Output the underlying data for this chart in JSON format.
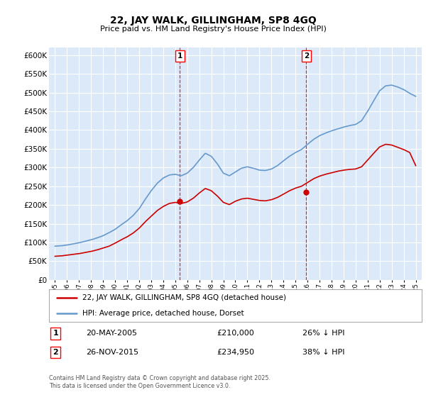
{
  "title": "22, JAY WALK, GILLINGHAM, SP8 4GQ",
  "subtitle": "Price paid vs. HM Land Registry's House Price Index (HPI)",
  "legend_line1": "22, JAY WALK, GILLINGHAM, SP8 4GQ (detached house)",
  "legend_line2": "HPI: Average price, detached house, Dorset",
  "annotation1": {
    "label": "1",
    "date_str": "20-MAY-2005",
    "price": 210000,
    "note": "26% ↓ HPI",
    "x_year": 2005.38
  },
  "annotation2": {
    "label": "2",
    "date_str": "26-NOV-2015",
    "price": 234950,
    "note": "38% ↓ HPI",
    "x_year": 2015.9
  },
  "footer_line1": "Contains HM Land Registry data © Crown copyright and database right 2025.",
  "footer_line2": "This data is licensed under the Open Government Licence v3.0.",
  "ylim": [
    0,
    620000
  ],
  "yticks": [
    0,
    50000,
    100000,
    150000,
    200000,
    250000,
    300000,
    350000,
    400000,
    450000,
    500000,
    550000,
    600000
  ],
  "xlim_start": 1994.5,
  "xlim_end": 2025.5,
  "outer_bg_color": "#ffffff",
  "plot_bg_color": "#dce9f8",
  "red_color": "#cc0000",
  "blue_color": "#6699cc",
  "sale1_x": 2005.38,
  "sale1_y": 210000,
  "sale2_x": 2015.9,
  "sale2_y": 234950,
  "hpi_years": [
    1995.0,
    1995.5,
    1996.0,
    1996.5,
    1997.0,
    1997.5,
    1998.0,
    1998.5,
    1999.0,
    1999.5,
    2000.0,
    2000.5,
    2001.0,
    2001.5,
    2002.0,
    2002.5,
    2003.0,
    2003.5,
    2004.0,
    2004.5,
    2005.0,
    2005.5,
    2006.0,
    2006.5,
    2007.0,
    2007.5,
    2008.0,
    2008.5,
    2009.0,
    2009.5,
    2010.0,
    2010.5,
    2011.0,
    2011.5,
    2012.0,
    2012.5,
    2013.0,
    2013.5,
    2014.0,
    2014.5,
    2015.0,
    2015.5,
    2016.0,
    2016.5,
    2017.0,
    2017.5,
    2018.0,
    2018.5,
    2019.0,
    2019.5,
    2020.0,
    2020.5,
    2021.0,
    2021.5,
    2022.0,
    2022.5,
    2023.0,
    2023.5,
    2024.0,
    2024.5,
    2025.0
  ],
  "hpi_values": [
    90000,
    91000,
    93000,
    96000,
    99000,
    103000,
    107000,
    112000,
    118000,
    126000,
    135000,
    147000,
    158000,
    172000,
    190000,
    215000,
    238000,
    258000,
    272000,
    280000,
    282000,
    278000,
    285000,
    300000,
    320000,
    338000,
    330000,
    310000,
    285000,
    278000,
    288000,
    298000,
    302000,
    298000,
    293000,
    292000,
    296000,
    305000,
    318000,
    330000,
    340000,
    348000,
    362000,
    375000,
    385000,
    392000,
    398000,
    403000,
    408000,
    412000,
    415000,
    425000,
    450000,
    478000,
    505000,
    518000,
    520000,
    515000,
    508000,
    498000,
    490000
  ],
  "red_years": [
    1995.0,
    1995.5,
    1996.0,
    1996.5,
    1997.0,
    1997.5,
    1998.0,
    1998.5,
    1999.0,
    1999.5,
    2000.0,
    2000.5,
    2001.0,
    2001.5,
    2002.0,
    2002.5,
    2003.0,
    2003.5,
    2004.0,
    2004.5,
    2005.0,
    2005.5,
    2006.0,
    2006.5,
    2007.0,
    2007.5,
    2008.0,
    2008.5,
    2009.0,
    2009.5,
    2010.0,
    2010.5,
    2011.0,
    2011.5,
    2012.0,
    2012.5,
    2013.0,
    2013.5,
    2014.0,
    2014.5,
    2015.0,
    2015.5,
    2016.0,
    2016.5,
    2017.0,
    2017.5,
    2018.0,
    2018.5,
    2019.0,
    2019.5,
    2020.0,
    2020.5,
    2021.0,
    2021.5,
    2022.0,
    2022.5,
    2023.0,
    2023.5,
    2024.0,
    2024.5,
    2025.0
  ],
  "red_values": [
    63000,
    64000,
    66000,
    68000,
    70000,
    73000,
    76000,
    80000,
    85000,
    90000,
    98000,
    107000,
    115000,
    125000,
    138000,
    155000,
    170000,
    185000,
    196000,
    204000,
    207000,
    204000,
    208000,
    218000,
    232000,
    244000,
    238000,
    224000,
    207000,
    201000,
    210000,
    216000,
    218000,
    215000,
    212000,
    211000,
    214000,
    220000,
    229000,
    238000,
    245000,
    250000,
    260000,
    270000,
    277000,
    282000,
    286000,
    290000,
    293000,
    295000,
    296000,
    302000,
    320000,
    338000,
    355000,
    362000,
    360000,
    354000,
    348000,
    340000,
    305000
  ]
}
